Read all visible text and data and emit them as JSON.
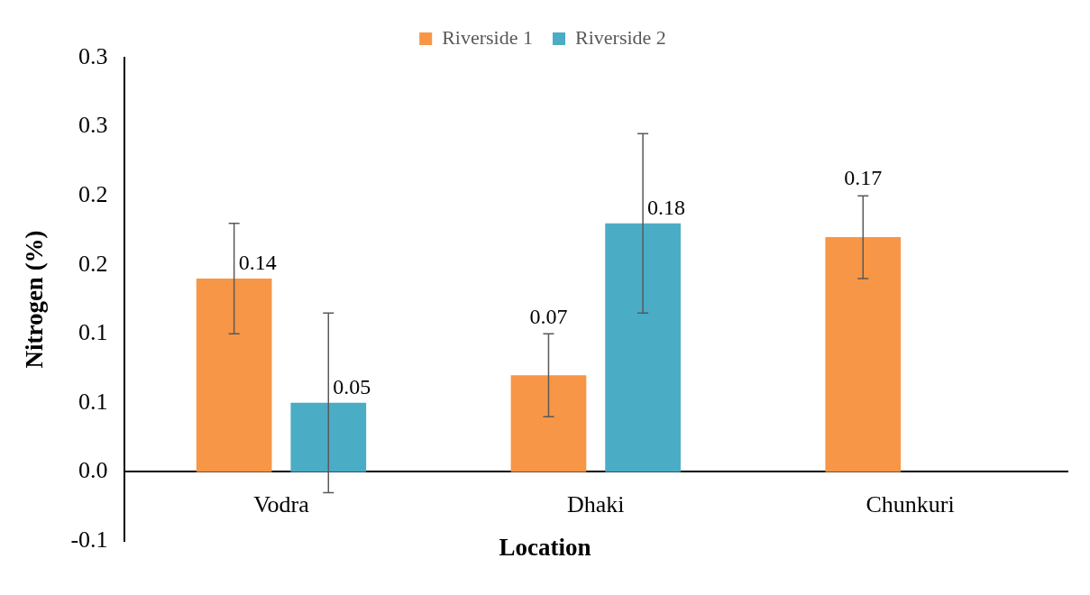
{
  "chart_data": {
    "type": "bar",
    "xlabel": "Location",
    "ylabel": "Nitrogen (%)",
    "categories": [
      "Vodra",
      "Dhaki",
      "Chunkuri"
    ],
    "series": [
      {
        "name": "Riverside 1",
        "color": "#f79646",
        "values": [
          0.14,
          0.07,
          0.17
        ],
        "errors": [
          0.04,
          0.03,
          0.03
        ]
      },
      {
        "name": "Riverside 2",
        "color": "#4bacc6",
        "values": [
          0.05,
          0.18,
          null
        ],
        "errors": [
          0.065,
          0.065,
          null
        ]
      }
    ],
    "ylim": [
      -0.05,
      0.3
    ],
    "yticks": [
      {
        "value": -0.05,
        "label": "-0.1"
      },
      {
        "value": 0,
        "label": "0.0"
      },
      {
        "value": 0.05,
        "label": "0.1"
      },
      {
        "value": 0.1,
        "label": "0.1"
      },
      {
        "value": 0.15,
        "label": "0.2"
      },
      {
        "value": 0.2,
        "label": "0.2"
      },
      {
        "value": 0.25,
        "label": "0.3"
      },
      {
        "value": 0.3,
        "label": "0.3"
      }
    ],
    "grid": false,
    "legend": "top",
    "data_labels": true
  }
}
